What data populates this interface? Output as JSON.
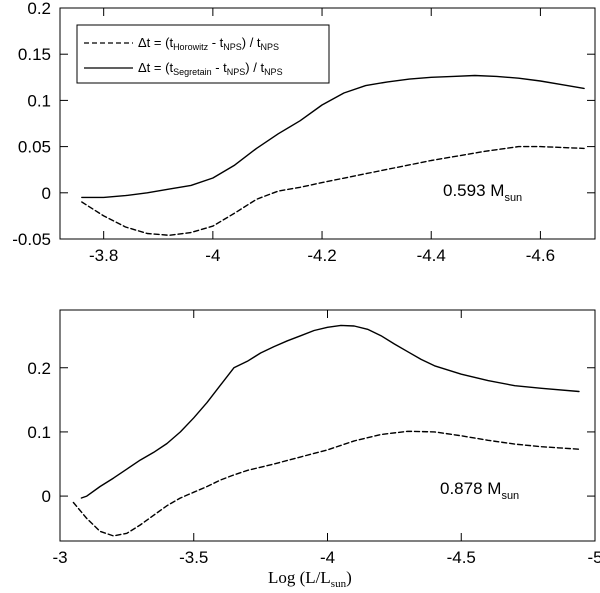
{
  "chart_data": [
    {
      "type": "line",
      "xlim": [
        -3.72,
        -4.7
      ],
      "ylim": [
        -0.05,
        0.2
      ],
      "xticks": [
        -3.8,
        -4.0,
        -4.2,
        -4.4,
        -4.6
      ],
      "xtick_labels": [
        "-3.8",
        "-4",
        "-4.2",
        "-4.4",
        "-4.6"
      ],
      "yticks": [
        -0.05,
        0,
        0.05,
        0.1,
        0.15,
        0.2
      ],
      "ytick_labels": [
        "-0.05",
        "0",
        "0.05",
        "0.1",
        "0.15",
        "0.2"
      ],
      "annotation": {
        "main": "0.593 M",
        "sub": "sun"
      },
      "legend": {
        "position": "top-left",
        "entries": [
          {
            "style": "dashed",
            "prefix": "Δt = (t",
            "sub1": "Horowitz",
            "mid": " - t",
            "sub2": "NPS",
            "mid2": ") / t",
            "sub3": "NPS"
          },
          {
            "style": "solid",
            "prefix": "Δt = (t",
            "sub1": "Segretain",
            "mid": " - t",
            "sub2": "NPS",
            "mid2": ") / t",
            "sub3": "NPS"
          }
        ]
      },
      "series": [
        {
          "name": "Horowitz",
          "style": "dashed",
          "x": [
            -3.76,
            -3.8,
            -3.84,
            -3.88,
            -3.92,
            -3.96,
            -4.0,
            -4.04,
            -4.08,
            -4.12,
            -4.16,
            -4.2,
            -4.3,
            -4.4,
            -4.5,
            -4.56,
            -4.6,
            -4.68
          ],
          "y": [
            -0.01,
            -0.025,
            -0.037,
            -0.044,
            -0.046,
            -0.043,
            -0.036,
            -0.022,
            -0.007,
            0.002,
            0.006,
            0.011,
            0.023,
            0.035,
            0.045,
            0.05,
            0.05,
            0.048
          ]
        },
        {
          "name": "Segretain",
          "style": "solid",
          "x": [
            -3.76,
            -3.8,
            -3.84,
            -3.88,
            -3.92,
            -3.96,
            -4.0,
            -4.04,
            -4.08,
            -4.12,
            -4.16,
            -4.2,
            -4.24,
            -4.28,
            -4.32,
            -4.36,
            -4.4,
            -4.44,
            -4.48,
            -4.52,
            -4.56,
            -4.6,
            -4.64,
            -4.68
          ],
          "y": [
            -0.005,
            -0.005,
            -0.003,
            0.0,
            0.004,
            0.008,
            0.016,
            0.03,
            0.048,
            0.064,
            0.078,
            0.095,
            0.108,
            0.116,
            0.12,
            0.123,
            0.125,
            0.126,
            0.127,
            0.126,
            0.124,
            0.121,
            0.117,
            0.113
          ]
        }
      ]
    },
    {
      "type": "line",
      "xlim": [
        -3.0,
        -5.0
      ],
      "ylim": [
        -0.07,
        0.29
      ],
      "xticks": [
        -3.0,
        -3.5,
        -4.0,
        -4.5,
        -5.0
      ],
      "xtick_labels": [
        "-3",
        "-3.5",
        "-4",
        "-4.5",
        "-5"
      ],
      "yticks": [
        0,
        0.1,
        0.2
      ],
      "ytick_labels": [
        "0",
        "0.1",
        "0.2"
      ],
      "xlabel": {
        "main": "Log (L/L",
        "sub": "sun",
        "end": ")"
      },
      "annotation": {
        "main": "0.878 M",
        "sub": "sun"
      },
      "series": [
        {
          "name": "Horowitz",
          "style": "dashed",
          "x": [
            -3.05,
            -3.1,
            -3.15,
            -3.2,
            -3.25,
            -3.3,
            -3.35,
            -3.4,
            -3.45,
            -3.5,
            -3.55,
            -3.6,
            -3.65,
            -3.7,
            -3.8,
            -3.9,
            -4.0,
            -4.1,
            -4.2,
            -4.3,
            -4.4,
            -4.5,
            -4.6,
            -4.7,
            -4.8,
            -4.94
          ],
          "y": [
            -0.01,
            -0.035,
            -0.055,
            -0.062,
            -0.058,
            -0.045,
            -0.03,
            -0.015,
            -0.003,
            0.006,
            0.015,
            0.025,
            0.033,
            0.04,
            0.05,
            0.061,
            0.072,
            0.086,
            0.096,
            0.101,
            0.1,
            0.094,
            0.087,
            0.081,
            0.077,
            0.073
          ]
        },
        {
          "name": "Segretain",
          "style": "solid",
          "x": [
            -3.08,
            -3.1,
            -3.15,
            -3.2,
            -3.25,
            -3.3,
            -3.35,
            -3.4,
            -3.45,
            -3.5,
            -3.55,
            -3.6,
            -3.65,
            -3.7,
            -3.75,
            -3.8,
            -3.85,
            -3.9,
            -3.95,
            -4.0,
            -4.05,
            -4.1,
            -4.15,
            -4.2,
            -4.25,
            -4.3,
            -4.35,
            -4.4,
            -4.5,
            -4.6,
            -4.7,
            -4.8,
            -4.94
          ],
          "y": [
            -0.003,
            0.0,
            0.015,
            0.028,
            0.042,
            0.056,
            0.068,
            0.082,
            0.1,
            0.122,
            0.146,
            0.173,
            0.2,
            0.21,
            0.223,
            0.233,
            0.242,
            0.25,
            0.258,
            0.263,
            0.266,
            0.265,
            0.26,
            0.25,
            0.237,
            0.225,
            0.213,
            0.203,
            0.19,
            0.18,
            0.172,
            0.168,
            0.163
          ]
        }
      ]
    }
  ]
}
